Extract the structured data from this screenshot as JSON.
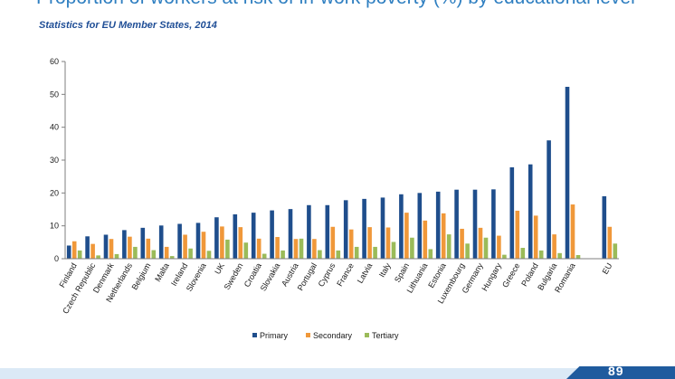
{
  "header": {
    "title": "Proportion of workers at risk of in-work poverty (%) by educational level",
    "subtitle": "Statistics for EU Member States, 2014"
  },
  "chart_data": {
    "type": "bar",
    "title": "Proportion of workers at risk of in-work poverty (%) by educational level",
    "subtitle": "Statistics for EU Member States, 2014",
    "xlabel": "",
    "ylabel": "",
    "ylim": [
      0,
      60
    ],
    "yticks": [
      0,
      10,
      20,
      30,
      40,
      50,
      60
    ],
    "grid": false,
    "legend_position": "bottom",
    "categories": [
      "Finland",
      "Czech Republic",
      "Denmark",
      "Netherlands",
      "Belgium",
      "Malta",
      "Ireland",
      "Slovenia",
      "UK",
      "Sweden",
      "Croatia",
      "Slovakia",
      "Austria",
      "Portugal",
      "Cyprus",
      "France",
      "Latvia",
      "Italy",
      "Spain",
      "Lithuania",
      "Estonia",
      "Luxembourg",
      "Germany",
      "Hungary",
      "Greece",
      "Poland",
      "Bulgaria",
      "Romania",
      "",
      "EU"
    ],
    "series": [
      {
        "name": "Primary",
        "color": "#1f4e8c",
        "values": [
          4.0,
          6.8,
          7.3,
          8.7,
          9.4,
          10.1,
          10.6,
          10.9,
          12.6,
          13.5,
          14.0,
          14.7,
          15.1,
          16.3,
          16.3,
          17.8,
          18.2,
          18.6,
          19.6,
          20.0,
          20.4,
          21.0,
          21.0,
          21.1,
          27.8,
          28.7,
          36.0,
          52.3,
          null,
          19.0
        ]
      },
      {
        "name": "Secondary",
        "color": "#f0983a",
        "values": [
          5.3,
          4.5,
          6.0,
          6.7,
          6.1,
          3.6,
          7.3,
          8.2,
          9.8,
          9.6,
          6.1,
          6.6,
          6.0,
          6.0,
          9.7,
          8.9,
          9.6,
          9.5,
          14.0,
          11.6,
          13.8,
          9.1,
          9.4,
          7.0,
          14.6,
          13.1,
          7.4,
          16.5,
          null,
          9.7
        ]
      },
      {
        "name": "Tertiary",
        "color": "#9bbb59",
        "values": [
          2.5,
          1.0,
          1.4,
          3.6,
          2.6,
          0.8,
          3.1,
          2.4,
          5.8,
          4.9,
          1.5,
          2.5,
          6.1,
          2.6,
          2.5,
          3.6,
          3.6,
          5.1,
          6.4,
          2.9,
          7.4,
          4.6,
          6.4,
          1.2,
          3.3,
          2.5,
          1.7,
          1.1,
          null,
          4.6
        ]
      }
    ]
  },
  "footer": {
    "logo_text": "89",
    "band_color": "#dbe9f6",
    "accent_color": "#1f5b9e"
  }
}
